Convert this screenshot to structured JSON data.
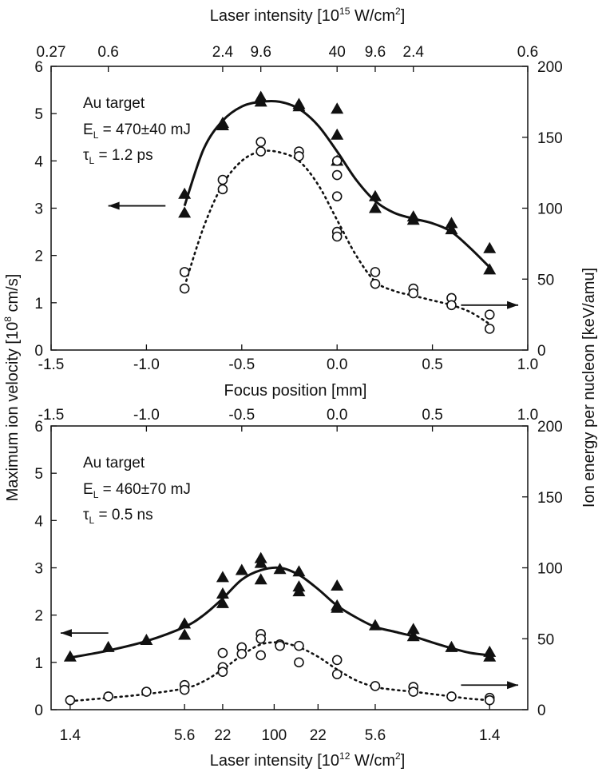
{
  "chart_data": [
    {
      "type": "scatter",
      "panel": "top",
      "x_axis_label": "Focus position [mm]",
      "x_ticks": [
        "-1.5",
        "-1.0",
        "-0.5",
        "0.0",
        "0.5",
        "1.0"
      ],
      "x_tick_values": [
        -1.5,
        -1.0,
        -0.5,
        0.0,
        0.5,
        1.0
      ],
      "xlim": [
        -1.5,
        1.0
      ],
      "top_axis_label_prefix": "Laser intensity [10",
      "top_axis_label_exp1": "15",
      "top_axis_label_mid": " W/cm",
      "top_axis_label_exp2": "2",
      "top_axis_label_suffix": "]",
      "top_ticks": [
        {
          "label": "0.27",
          "at_x": -1.5
        },
        {
          "label": "0.6",
          "at_x": -1.2
        },
        {
          "label": "2.4",
          "at_x": -0.6
        },
        {
          "label": "9.6",
          "at_x": -0.4
        },
        {
          "label": "40",
          "at_x": 0.0
        },
        {
          "label": "9.6",
          "at_x": 0.2
        },
        {
          "label": "2.4",
          "at_x": 0.4
        },
        {
          "label": "0.6",
          "at_x": 1.0
        }
      ],
      "y_left_ticks": [
        "0",
        "1",
        "2",
        "3",
        "4",
        "5",
        "6"
      ],
      "ylim_left": [
        0,
        6
      ],
      "y_right_ticks": [
        "0",
        "50",
        "100",
        "150",
        "200"
      ],
      "ylim_right": [
        0,
        200
      ],
      "annotation": {
        "line1": "Au target",
        "line2_prefix": "E",
        "line2_sub": "L",
        "line2_suffix": " = 470±40 mJ",
        "line3_prefix": "τ",
        "line3_sub": "L",
        "line3_suffix": " = 1.2 ps"
      },
      "series": [
        {
          "name": "Maximum ion velocity",
          "marker": "filled-triangle",
          "axis": "left",
          "x": [
            -0.8,
            -0.8,
            -0.6,
            -0.6,
            -0.4,
            -0.4,
            -0.2,
            -0.2,
            0.0,
            0.0,
            0.0,
            0.2,
            0.2,
            0.4,
            0.4,
            0.6,
            0.6,
            0.8,
            0.8
          ],
          "y": [
            3.3,
            2.9,
            4.8,
            4.75,
            5.35,
            5.25,
            5.2,
            5.15,
            5.1,
            4.55,
            4.0,
            3.25,
            3.0,
            2.82,
            2.75,
            2.68,
            2.55,
            2.15,
            1.7
          ]
        },
        {
          "name": "Ion energy per nucleon",
          "marker": "open-circle",
          "axis": "left",
          "x": [
            -0.8,
            -0.8,
            -0.6,
            -0.6,
            -0.4,
            -0.4,
            -0.2,
            -0.2,
            0.0,
            0.0,
            0.0,
            0.0,
            0.0,
            0.2,
            0.2,
            0.4,
            0.4,
            0.6,
            0.6,
            0.8,
            0.8
          ],
          "y": [
            1.65,
            1.3,
            3.6,
            3.4,
            4.4,
            4.2,
            4.2,
            4.1,
            4.0,
            3.7,
            3.25,
            2.5,
            2.4,
            1.65,
            1.4,
            1.3,
            1.2,
            1.1,
            0.95,
            0.75,
            0.45
          ]
        }
      ],
      "fit_solid": {
        "x": [
          -0.8,
          -0.7,
          -0.6,
          -0.5,
          -0.4,
          -0.3,
          -0.2,
          -0.1,
          0.0,
          0.1,
          0.2,
          0.3,
          0.4,
          0.5,
          0.6,
          0.7,
          0.8
        ],
        "y": [
          3.05,
          4.25,
          4.85,
          5.15,
          5.25,
          5.25,
          5.1,
          4.75,
          4.2,
          3.6,
          3.15,
          2.9,
          2.78,
          2.68,
          2.5,
          2.15,
          1.75
        ]
      },
      "fit_dotted": {
        "x": [
          -0.8,
          -0.7,
          -0.6,
          -0.5,
          -0.4,
          -0.3,
          -0.2,
          -0.1,
          0.0,
          0.1,
          0.2,
          0.3,
          0.4,
          0.5,
          0.6,
          0.7,
          0.8
        ],
        "y": [
          1.35,
          2.6,
          3.5,
          4.0,
          4.2,
          4.18,
          4.0,
          3.5,
          2.75,
          2.0,
          1.45,
          1.25,
          1.15,
          1.05,
          0.95,
          0.8,
          0.55
        ]
      },
      "arrows": [
        {
          "direction": "left",
          "x_from": -0.9,
          "x_to": -1.2,
          "y": 3.05
        },
        {
          "direction": "right",
          "x_from": 0.65,
          "x_to": 0.95,
          "y": 0.95
        }
      ]
    },
    {
      "type": "scatter",
      "panel": "bottom",
      "x_ticks_top": [
        "-1.5",
        "-1.0",
        "-0.5",
        "0.0",
        "0.5",
        "1.0"
      ],
      "x_tick_values": [
        -1.5,
        -1.0,
        -0.5,
        0.0,
        0.5,
        1.0
      ],
      "xlim": [
        -1.5,
        1.0
      ],
      "x_axis_label_prefix": "Laser intensity [10",
      "x_axis_label_exp1": "12",
      "x_axis_label_mid": " W/cm",
      "x_axis_label_exp2": "2",
      "x_axis_label_suffix": "]",
      "bottom_ticks": [
        {
          "label": "1.4",
          "at_x": -1.4
        },
        {
          "label": "5.6",
          "at_x": -0.8
        },
        {
          "label": "22",
          "at_x": -0.6
        },
        {
          "label": "100",
          "at_x": -0.33
        },
        {
          "label": "22",
          "at_x": -0.1
        },
        {
          "label": "5.6",
          "at_x": 0.2
        },
        {
          "label": "1.4",
          "at_x": 0.8
        }
      ],
      "y_left_ticks": [
        "0",
        "1",
        "2",
        "3",
        "4",
        "5",
        "6"
      ],
      "ylim_left": [
        0,
        6
      ],
      "y_right_ticks": [
        "0",
        "50",
        "100",
        "150",
        "200"
      ],
      "ylim_right": [
        0,
        200
      ],
      "annotation": {
        "line1": "Au target",
        "line2_prefix": "E",
        "line2_sub": "L",
        "line2_suffix": " = 460±70 mJ",
        "line3_prefix": "τ",
        "line3_sub": "L",
        "line3_suffix": " = 0.5 ns"
      },
      "series": [
        {
          "name": "Maximum ion velocity",
          "marker": "filled-triangle",
          "axis": "left",
          "x": [
            -1.4,
            -1.2,
            -1.0,
            -0.8,
            -0.8,
            -0.6,
            -0.6,
            -0.6,
            -0.5,
            -0.4,
            -0.4,
            -0.4,
            -0.3,
            -0.2,
            -0.2,
            -0.2,
            0.0,
            0.0,
            0.0,
            0.2,
            0.4,
            0.4,
            0.6,
            0.8,
            0.8
          ],
          "y": [
            1.12,
            1.32,
            1.47,
            1.82,
            1.58,
            2.8,
            2.45,
            2.25,
            2.95,
            3.2,
            3.1,
            2.75,
            2.97,
            2.92,
            2.6,
            2.5,
            2.62,
            2.2,
            2.15,
            1.78,
            1.7,
            1.55,
            1.32,
            1.22,
            1.12
          ]
        },
        {
          "name": "Ion energy per nucleon",
          "marker": "open-circle",
          "axis": "left",
          "x": [
            -1.4,
            -1.2,
            -1.0,
            -0.8,
            -0.8,
            -0.6,
            -0.6,
            -0.6,
            -0.5,
            -0.5,
            -0.4,
            -0.4,
            -0.4,
            -0.3,
            -0.3,
            -0.2,
            -0.2,
            0.0,
            0.0,
            0.2,
            0.4,
            0.4,
            0.6,
            0.8,
            0.8
          ],
          "y": [
            0.2,
            0.28,
            0.38,
            0.52,
            0.42,
            1.2,
            0.9,
            0.8,
            1.32,
            1.18,
            1.6,
            1.5,
            1.15,
            1.38,
            1.35,
            1.35,
            1.0,
            1.05,
            0.75,
            0.5,
            0.48,
            0.38,
            0.28,
            0.25,
            0.2
          ]
        }
      ],
      "fit_solid": {
        "x": [
          -1.4,
          -1.2,
          -1.0,
          -0.8,
          -0.7,
          -0.6,
          -0.5,
          -0.4,
          -0.3,
          -0.2,
          -0.1,
          0.0,
          0.1,
          0.2,
          0.3,
          0.4,
          0.5,
          0.6,
          0.7,
          0.8
        ],
        "y": [
          1.1,
          1.25,
          1.45,
          1.75,
          2.0,
          2.35,
          2.75,
          2.95,
          3.0,
          2.85,
          2.55,
          2.2,
          1.95,
          1.75,
          1.65,
          1.55,
          1.42,
          1.3,
          1.2,
          1.15
        ]
      },
      "fit_dotted": {
        "x": [
          -1.4,
          -1.2,
          -1.0,
          -0.8,
          -0.7,
          -0.6,
          -0.5,
          -0.4,
          -0.3,
          -0.2,
          -0.1,
          0.0,
          0.1,
          0.2,
          0.3,
          0.4,
          0.5,
          0.6,
          0.7,
          0.8
        ],
        "y": [
          0.18,
          0.25,
          0.33,
          0.45,
          0.6,
          0.85,
          1.15,
          1.38,
          1.42,
          1.32,
          1.12,
          0.85,
          0.62,
          0.48,
          0.42,
          0.38,
          0.33,
          0.28,
          0.23,
          0.2
        ]
      },
      "arrows": [
        {
          "direction": "left",
          "x_from": -1.2,
          "x_to": -1.45,
          "y": 1.62
        },
        {
          "direction": "right",
          "x_from": 0.65,
          "x_to": 0.95,
          "y": 0.52
        }
      ]
    }
  ],
  "shared": {
    "y_left_label_prefix": "Maximum ion velocity [10",
    "y_left_label_exp": "8",
    "y_left_label_suffix": " cm/s]",
    "y_right_label": "Ion energy per nucleon [keV/amu]"
  }
}
